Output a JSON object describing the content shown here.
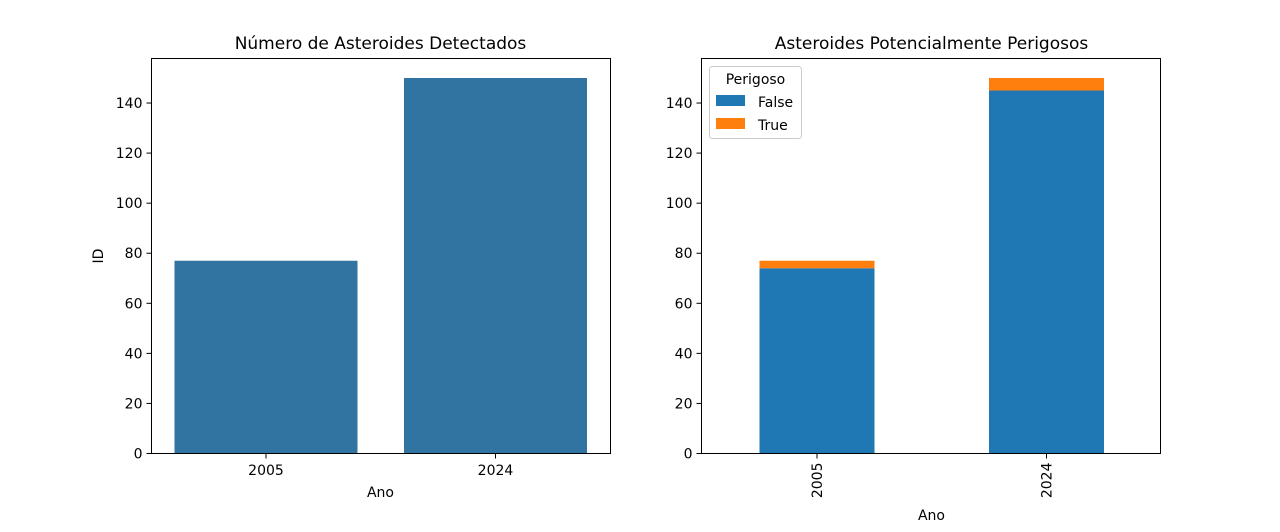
{
  "chart_data": [
    {
      "type": "bar",
      "title": "Número de Asteroides Detectados",
      "xlabel": "Ano",
      "ylabel": "ID",
      "categories": [
        "2005",
        "2024"
      ],
      "values": [
        77,
        150
      ],
      "ylim": [
        0,
        150
      ],
      "yticks": [
        "0",
        "20",
        "40",
        "60",
        "80",
        "100",
        "120",
        "140"
      ],
      "color": "#3274a1",
      "grid": false
    },
    {
      "type": "bar",
      "stacked": true,
      "title": "Asteroides Potencialmente Perigosos",
      "xlabel": "Ano",
      "ylabel": "",
      "categories": [
        "2005",
        "2024"
      ],
      "xtick_rotation": "vertical",
      "series": [
        {
          "name": "False",
          "values": [
            74,
            145
          ],
          "color": "#1f77b4"
        },
        {
          "name": "True",
          "values": [
            3,
            5
          ],
          "color": "#ff7f0e"
        }
      ],
      "ylim": [
        0,
        150
      ],
      "yticks": [
        "0",
        "20",
        "40",
        "60",
        "80",
        "100",
        "120",
        "140"
      ],
      "legend": {
        "title": "Perigoso",
        "placement": "top-left"
      },
      "grid": false
    }
  ]
}
